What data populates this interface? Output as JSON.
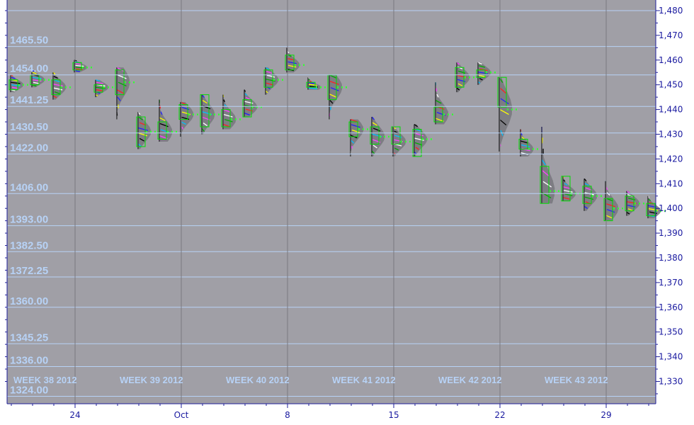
{
  "colors": {
    "plot_bg": "#a09fa6",
    "frame": "#1e1e9a",
    "level_line": "#b7d2f6",
    "day_line": "#7a7a80",
    "value_area": "#00dd00",
    "profile_gray": "#77777c",
    "poc": "#33ff33"
  },
  "chart_data": {
    "type": "market-profile",
    "title": "",
    "xlabel": "",
    "ylabel": "",
    "ylim": [
      1322,
      1482
    ],
    "grid": true,
    "y_ticks": [
      1330,
      1340,
      1350,
      1360,
      1370,
      1380,
      1390,
      1400,
      1410,
      1420,
      1430,
      1440,
      1450,
      1460,
      1470,
      1480
    ],
    "y_tick_labels": [
      "1,330",
      "1,340",
      "1,350",
      "1,360",
      "1,370",
      "1,380",
      "1,390",
      "1,400",
      "1,410",
      "1,420",
      "1,430",
      "1,440",
      "1,450",
      "1,460",
      "1,470",
      "1,480"
    ],
    "x_ticks": [
      {
        "day": 3,
        "label": "24"
      },
      {
        "day": 8,
        "label": "Oct"
      },
      {
        "day": 13,
        "label": "8"
      },
      {
        "day": 18,
        "label": "15"
      },
      {
        "day": 23,
        "label": "22"
      },
      {
        "day": 28,
        "label": "29"
      }
    ],
    "price_levels": [
      {
        "value": 1480.0,
        "label": ""
      },
      {
        "value": 1465.5,
        "label": "1465.50"
      },
      {
        "value": 1454.0,
        "label": "1454.00"
      },
      {
        "value": 1441.25,
        "label": "1441.25"
      },
      {
        "value": 1430.5,
        "label": "1430.50"
      },
      {
        "value": 1422.0,
        "label": "1422.00"
      },
      {
        "value": 1406.0,
        "label": "1406.00"
      },
      {
        "value": 1393.0,
        "label": "1393.00"
      },
      {
        "value": 1382.5,
        "label": "1382.50"
      },
      {
        "value": 1372.25,
        "label": "1372.25"
      },
      {
        "value": 1360.0,
        "label": "1360.00"
      },
      {
        "value": 1345.25,
        "label": "1345.25"
      },
      {
        "value": 1336.0,
        "label": "1336.00"
      },
      {
        "value": 1324.0,
        "label": "1324.00"
      }
    ],
    "week_labels": [
      {
        "day": 0.1,
        "text": "WEEK 38 2012"
      },
      {
        "day": 5.1,
        "text": "WEEK 39 2012"
      },
      {
        "day": 10.1,
        "text": "WEEK 40 2012"
      },
      {
        "day": 15.1,
        "text": "WEEK 41 2012"
      },
      {
        "day": 20.1,
        "text": "WEEK 42 2012"
      },
      {
        "day": 25.1,
        "text": "WEEK 43 2012"
      }
    ],
    "sessions": [
      {
        "day": 0,
        "high": 1454,
        "low": 1447,
        "va_high": 1452,
        "va_low": 1448,
        "poc": 1450
      },
      {
        "day": 1,
        "high": 1456,
        "low": 1449,
        "va_high": 1454,
        "va_low": 1450,
        "poc": 1452
      },
      {
        "day": 2,
        "high": 1455,
        "low": 1444,
        "va_high": 1452,
        "va_low": 1446,
        "poc": 1449
      },
      {
        "day": 3,
        "high": 1460,
        "low": 1455,
        "va_high": 1459,
        "va_low": 1456,
        "poc": 1457
      },
      {
        "day": 4,
        "high": 1452,
        "low": 1445,
        "va_high": 1450,
        "va_low": 1447,
        "poc": 1449
      },
      {
        "day": 5,
        "high": 1457,
        "low": 1436,
        "va_high": 1456,
        "va_low": 1446,
        "poc": 1451
      },
      {
        "day": 6,
        "high": 1439,
        "low": 1424,
        "va_high": 1437,
        "va_low": 1425,
        "poc": 1431
      },
      {
        "day": 7,
        "high": 1444,
        "low": 1427,
        "va_high": 1435,
        "va_low": 1428,
        "poc": 1431
      },
      {
        "day": 8,
        "high": 1443,
        "low": 1429,
        "va_high": 1442,
        "va_low": 1436,
        "poc": 1438
      },
      {
        "day": 9,
        "high": 1446,
        "low": 1430,
        "va_high": 1446,
        "va_low": 1433,
        "poc": 1438
      },
      {
        "day": 10,
        "high": 1446,
        "low": 1432,
        "va_high": 1440,
        "va_low": 1433,
        "poc": 1436
      },
      {
        "day": 11,
        "high": 1448,
        "low": 1437,
        "va_high": 1444,
        "va_low": 1437,
        "poc": 1441
      },
      {
        "day": 12,
        "high": 1457,
        "low": 1446,
        "va_high": 1456,
        "va_low": 1449,
        "poc": 1452
      },
      {
        "day": 13,
        "high": 1465,
        "low": 1455,
        "va_high": 1462,
        "va_low": 1456,
        "poc": 1458
      },
      {
        "day": 14,
        "high": 1453,
        "low": 1448,
        "va_high": 1451,
        "va_low": 1449,
        "poc": 1449
      },
      {
        "day": 15,
        "high": 1454,
        "low": 1436,
        "va_high": 1454,
        "va_low": 1444,
        "poc": 1449
      },
      {
        "day": 16,
        "high": 1436,
        "low": 1421,
        "va_high": 1435,
        "va_low": 1429,
        "poc": 1432
      },
      {
        "day": 17,
        "high": 1437,
        "low": 1421,
        "va_high": 1433,
        "va_low": 1426,
        "poc": 1429
      },
      {
        "day": 18,
        "high": 1433,
        "low": 1421,
        "va_high": 1433,
        "va_low": 1426,
        "poc": 1427
      },
      {
        "day": 19,
        "high": 1434,
        "low": 1421,
        "va_high": 1432,
        "va_low": 1421,
        "poc": 1428
      },
      {
        "day": 20,
        "high": 1451,
        "low": 1434,
        "va_high": 1441,
        "va_low": 1435,
        "poc": 1438
      },
      {
        "day": 21,
        "high": 1459,
        "low": 1447,
        "va_high": 1457,
        "va_low": 1449,
        "poc": 1453
      },
      {
        "day": 22,
        "high": 1459,
        "low": 1450,
        "va_high": 1456,
        "va_low": 1453,
        "poc": 1455
      },
      {
        "day": 23,
        "high": 1453,
        "low": 1423,
        "va_high": 1453,
        "va_low": 1441,
        "poc": 1440
      },
      {
        "day": 24,
        "high": 1432,
        "low": 1421,
        "va_high": 1428,
        "va_low": 1424,
        "poc": 1424
      },
      {
        "day": 25,
        "high": 1433,
        "low": 1402,
        "va_high": 1417,
        "va_low": 1402,
        "poc": 1407
      },
      {
        "day": 26,
        "high": 1413,
        "low": 1403,
        "va_high": 1413,
        "va_low": 1403,
        "poc": 1406
      },
      {
        "day": 27,
        "high": 1412,
        "low": 1399,
        "va_high": 1409,
        "va_low": 1402,
        "poc": 1405
      },
      {
        "day": 28,
        "high": 1411,
        "low": 1395,
        "va_high": 1404,
        "va_low": 1395,
        "poc": 1400
      },
      {
        "day": 29,
        "high": 1407,
        "low": 1397,
        "va_high": 1405,
        "va_low": 1399,
        "poc": 1402
      },
      {
        "day": 30,
        "high": 1405,
        "low": 1396,
        "va_high": 1402,
        "va_low": 1397,
        "poc": 1399
      }
    ]
  }
}
